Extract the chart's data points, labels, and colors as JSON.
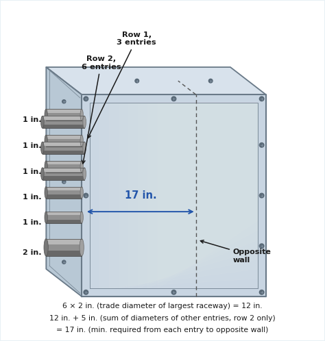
{
  "bg_color": "#e8f0f5",
  "border_color": "#8aaabb",
  "box_front_color": "#c8d5e2",
  "box_top_color": "#d8e2ec",
  "box_side_color": "#b8c8d5",
  "box_edge_color": "#6a7a88",
  "box_frame_color": "#7a8a98",
  "conduit_body_color": "#909090",
  "conduit_top_color": "#b8b8b8",
  "conduit_dark_color": "#686868",
  "conduit_end_color": "#a0a0a0",
  "arrow_color": "#2255aa",
  "text_color": "#1a1a1a",
  "screw_color": "#5a6a78",
  "row1_label": "Row 1,\n3 entries",
  "row2_label": "Row 2,\n6 entries",
  "dim_label": "17 in.",
  "opposite_wall_label": "Opposite\nwall",
  "conduit_labels": [
    "1 in.",
    "1 in.",
    "1 in.",
    "1 in.",
    "1 in.",
    "2 in."
  ],
  "footer_lines": [
    "6 × 2 in. (trade diameter of largest raceway) = 12 in.",
    "12 in. + 5 in. (sum of diameters of other entries, row 2 only)",
    "= 17 in. (min. required from each entry to opposite wall)"
  ],
  "footer_fontsize": 7.8,
  "label_fontsize": 8.5,
  "dim_fontsize": 10.5
}
